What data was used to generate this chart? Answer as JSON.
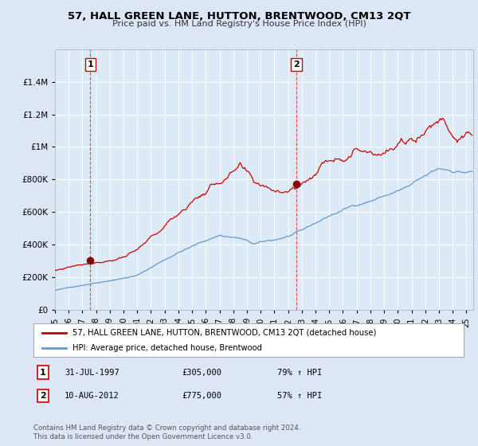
{
  "title": "57, HALL GREEN LANE, HUTTON, BRENTWOOD, CM13 2QT",
  "subtitle": "Price paid vs. HM Land Registry's House Price Index (HPI)",
  "bg_color": "#dce6f5",
  "plot_bg_color": "#dce9f7",
  "legend_label1": "57, HALL GREEN LANE, HUTTON, BRENTWOOD, CM13 2QT (detached house)",
  "legend_label2": "HPI: Average price, detached house, Brentwood",
  "line1_color": "#cc0000",
  "line2_color": "#6699cc",
  "marker_color": "#880000",
  "sale1_year": 1997.58,
  "sale1_price": 305000,
  "sale2_year": 2012.61,
  "sale2_price": 775000,
  "footer": "Contains HM Land Registry data © Crown copyright and database right 2024.\nThis data is licensed under the Open Government Licence v3.0.",
  "ylim": [
    0,
    1600000
  ],
  "yticks": [
    0,
    200000,
    400000,
    600000,
    800000,
    1000000,
    1200000,
    1400000
  ],
  "ytick_labels": [
    "£0",
    "£200K",
    "£400K",
    "£600K",
    "£800K",
    "£1M",
    "£1.2M",
    "£1.4M"
  ],
  "xmin": 1995.0,
  "xmax": 2025.5
}
